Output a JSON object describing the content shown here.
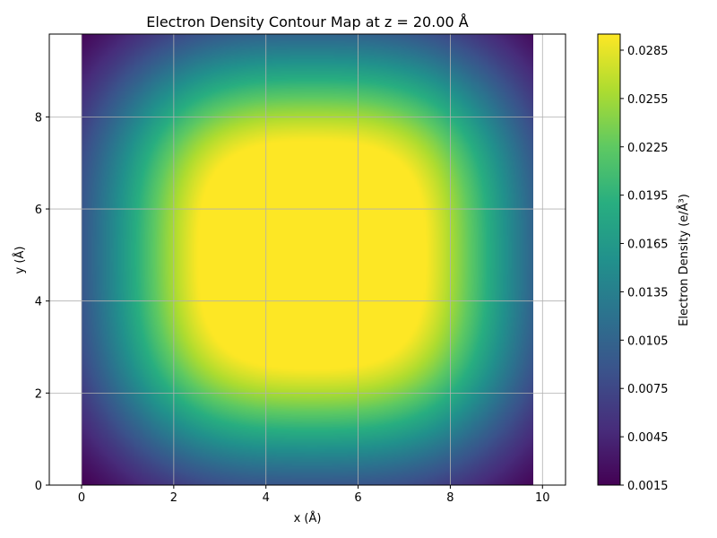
{
  "chart_data": {
    "type": "heatmap",
    "title": "Electron Density Contour Map at z = 20.00 Å",
    "xlabel": "x (Å)",
    "ylabel": "y (Å)",
    "xlim": [
      -0.7,
      10.5
    ],
    "ylim": [
      0,
      9.8
    ],
    "data_extent": {
      "x": [
        0,
        9.8
      ],
      "y": [
        0,
        9.8
      ]
    },
    "x_ticks": [
      0,
      2,
      4,
      6,
      8,
      10
    ],
    "x_tick_labels": [
      "0",
      "2",
      "4",
      "6",
      "8",
      "10"
    ],
    "y_ticks": [
      0,
      2,
      4,
      6,
      8
    ],
    "y_tick_labels": [
      "0",
      "2",
      "4",
      "6",
      "8"
    ],
    "grid": true,
    "colorbar": {
      "label": "Electron Density (e/Å³)",
      "colormap": "viridis",
      "range": [
        0.0015,
        0.0295
      ],
      "ticks": [
        0.0015,
        0.0045,
        0.0075,
        0.0105,
        0.0135,
        0.0165,
        0.0195,
        0.0225,
        0.0255,
        0.0285
      ],
      "tick_labels": [
        "0.0015",
        "0.0045",
        "0.0075",
        "0.0105",
        "0.0135",
        "0.0165",
        "0.0195",
        "0.0225",
        "0.0255",
        "0.0285"
      ]
    },
    "density_peaks": [
      {
        "x": 3.0,
        "y": 3.0,
        "value": 0.0292
      },
      {
        "x": 7.0,
        "y": 3.0,
        "value": 0.0292
      },
      {
        "x": 3.0,
        "y": 7.0,
        "value": 0.0292
      },
      {
        "x": 7.0,
        "y": 7.0,
        "value": 0.0292
      }
    ],
    "center_value": {
      "x": 5.0,
      "y": 5.0,
      "value": 0.0262
    },
    "corner_min_value": 0.0015
  },
  "colors": {
    "grid": "#b0b0b0",
    "axes": "#000000",
    "background": "#ffffff"
  }
}
